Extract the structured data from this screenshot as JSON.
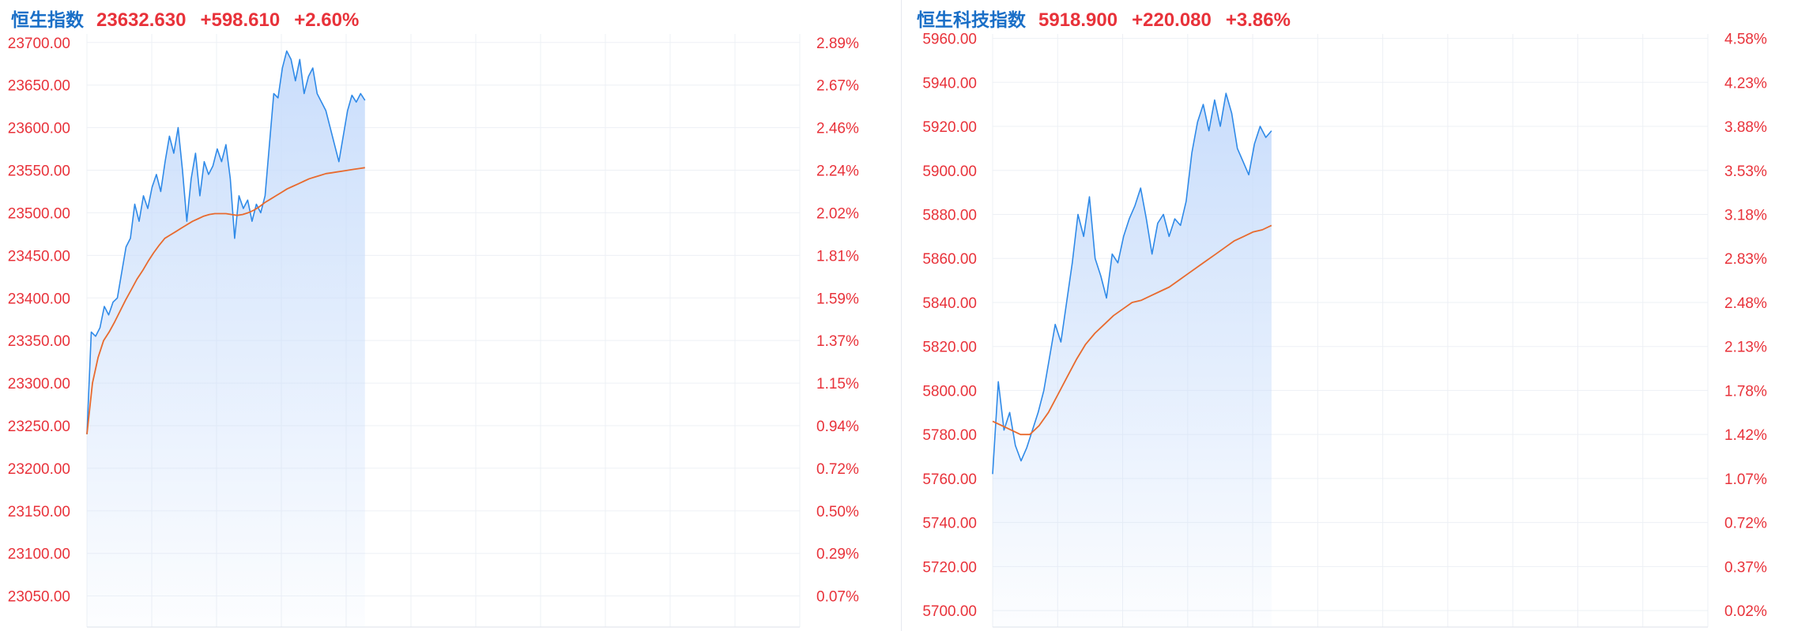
{
  "colors": {
    "title": "#1a6fc7",
    "up": "#e8323a",
    "price_line": "#2f8ae8",
    "avg_line": "#e86a2e",
    "area_top": "#c7dcfb",
    "grid": "#edf0f5"
  },
  "panels": [
    {
      "name": "恒生指数",
      "value": "23632.630",
      "change": "+598.610",
      "change_pct": "+2.60%"
    },
    {
      "name": "恒生科技指数",
      "value": "5918.900",
      "change": "+220.080",
      "change_pct": "+3.86%"
    }
  ],
  "chart_data": [
    {
      "type": "line",
      "title": "恒生指数",
      "ylim": [
        23013.5,
        23710
      ],
      "y_ticks": [
        "23700.00",
        "23650.00",
        "23600.00",
        "23550.00",
        "23500.00",
        "23450.00",
        "23400.00",
        "23350.00",
        "23300.00",
        "23250.00",
        "23200.00",
        "23150.00",
        "23100.00",
        "23050.00"
      ],
      "y_tick_values": [
        23700,
        23650,
        23600,
        23550,
        23500,
        23450,
        23400,
        23350,
        23300,
        23250,
        23200,
        23150,
        23100,
        23050
      ],
      "pct_ticks": [
        "2.89%",
        "2.67%",
        "2.46%",
        "2.24%",
        "2.02%",
        "1.81%",
        "1.59%",
        "1.37%",
        "1.15%",
        "0.94%",
        "0.72%",
        "0.50%",
        "0.29%",
        "0.07%"
      ],
      "grid": true,
      "session_fraction_elapsed": 0.39,
      "series": [
        {
          "values": [
            23240,
            23360,
            23355,
            23365,
            23390,
            23380,
            23395,
            23400,
            23430,
            23460,
            23470,
            23510,
            23490,
            23520,
            23505,
            23530,
            23545,
            23525,
            23560,
            23590,
            23570,
            23600,
            23550,
            23490,
            23540,
            23570,
            23520,
            23560,
            23545,
            23555,
            23575,
            23560,
            23580,
            23540,
            23470,
            23520,
            23505,
            23515,
            23490,
            23510,
            23500,
            23520,
            23580,
            23640,
            23635,
            23670,
            23690,
            23680,
            23655,
            23680,
            23640,
            23660,
            23670,
            23640,
            23630,
            23620,
            23600,
            23580,
            23560,
            23590,
            23620,
            23638,
            23630,
            23640,
            23632
          ]
        },
        {
          "values": [
            23240,
            23300,
            23330,
            23350,
            23360,
            23372,
            23385,
            23398,
            23410,
            23422,
            23432,
            23443,
            23453,
            23462,
            23470,
            23474,
            23478,
            23482,
            23486,
            23490,
            23493,
            23496,
            23498,
            23499,
            23499,
            23499,
            23498,
            23497,
            23498,
            23500,
            23503,
            23507,
            23512,
            23516,
            23520,
            23524,
            23528,
            23531,
            23534,
            23537,
            23540,
            23542,
            23544,
            23546,
            23547,
            23548,
            23549,
            23550,
            23551,
            23552,
            23553
          ]
        }
      ]
    },
    {
      "type": "line",
      "title": "恒生科技指数",
      "ylim": [
        5692.5,
        5962
      ],
      "y_ticks": [
        "5960.00",
        "5940.00",
        "5920.00",
        "5900.00",
        "5880.00",
        "5860.00",
        "5840.00",
        "5820.00",
        "5800.00",
        "5780.00",
        "5760.00",
        "5740.00",
        "5720.00",
        "5700.00"
      ],
      "y_tick_values": [
        5960,
        5940,
        5920,
        5900,
        5880,
        5860,
        5840,
        5820,
        5800,
        5780,
        5760,
        5740,
        5720,
        5700
      ],
      "pct_ticks": [
        "4.58%",
        "4.23%",
        "3.88%",
        "3.53%",
        "3.18%",
        "2.83%",
        "2.48%",
        "2.13%",
        "1.78%",
        "1.42%",
        "1.07%",
        "0.72%",
        "0.37%",
        "0.02%"
      ],
      "grid": true,
      "session_fraction_elapsed": 0.39,
      "series": [
        {
          "values": [
            5762,
            5804,
            5782,
            5790,
            5775,
            5768,
            5774,
            5782,
            5790,
            5800,
            5815,
            5830,
            5822,
            5840,
            5858,
            5880,
            5870,
            5888,
            5860,
            5852,
            5842,
            5862,
            5858,
            5870,
            5878,
            5884,
            5892,
            5878,
            5862,
            5876,
            5880,
            5870,
            5878,
            5875,
            5886,
            5908,
            5922,
            5930,
            5918,
            5932,
            5920,
            5935,
            5926,
            5910,
            5904,
            5898,
            5912,
            5920,
            5915,
            5918
          ]
        },
        {
          "values": [
            5786,
            5784,
            5782,
            5780,
            5780,
            5784,
            5790,
            5798,
            5806,
            5814,
            5821,
            5826,
            5830,
            5834,
            5837,
            5840,
            5841,
            5843,
            5845,
            5847,
            5850,
            5853,
            5856,
            5859,
            5862,
            5865,
            5868,
            5870,
            5872,
            5873,
            5875
          ]
        }
      ]
    }
  ]
}
